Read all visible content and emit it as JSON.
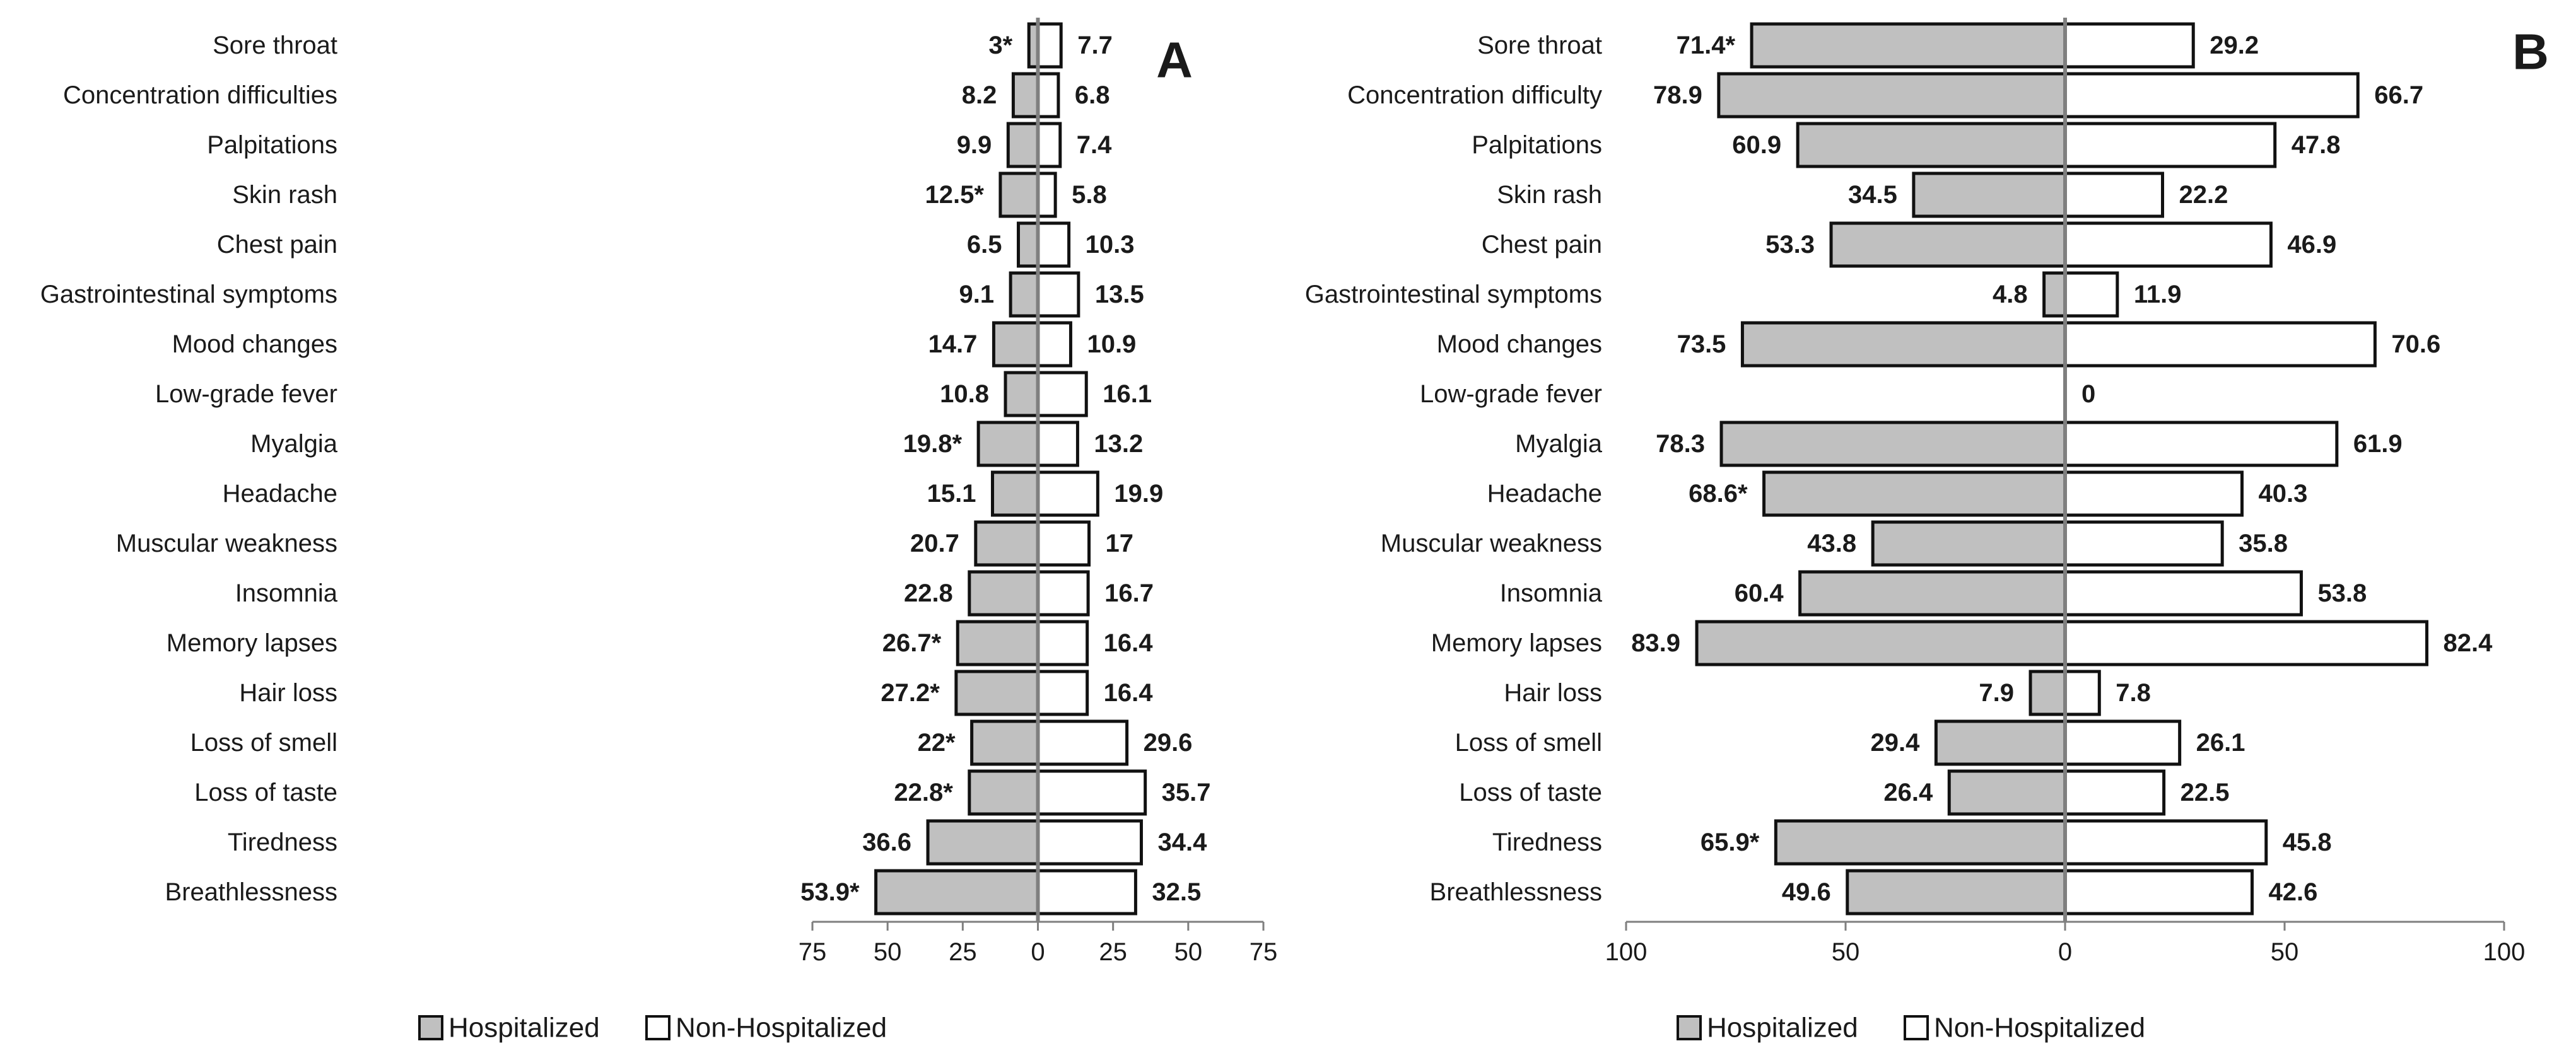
{
  "legend": {
    "hospitalized": "Hospitalized",
    "non_hospitalized": "Non-Hospitalized"
  },
  "colors": {
    "hospitalized_fill": "#c0c0c0",
    "non_hospitalized_fill": "#ffffff",
    "bar_stroke": "#111111",
    "axis": "#7f7f7f",
    "text": "#1a1a1a"
  },
  "chart_data": [
    {
      "type": "bar",
      "orientation": "horizontal-diverging",
      "panel_label": "A",
      "categories": [
        "Sore throat",
        "Concentration difficulties",
        "Palpitations",
        "Skin rash",
        "Chest pain",
        "Gastrointestinal symptoms",
        "Mood changes",
        "Low-grade fever",
        "Myalgia",
        "Headache",
        "Muscular weakness",
        "Insomnia",
        "Memory lapses",
        "Hair loss",
        "Loss of smell",
        "Loss of taste",
        "Tiredness",
        "Breathlessness"
      ],
      "series": [
        {
          "name": "Hospitalized",
          "side": "left",
          "values": [
            3,
            8.2,
            9.9,
            12.5,
            6.5,
            9.1,
            14.7,
            10.8,
            19.8,
            15.1,
            20.7,
            22.8,
            26.7,
            27.2,
            22,
            22.8,
            36.6,
            53.9
          ],
          "labels": [
            "3*",
            "8.2",
            "9.9",
            "12.5*",
            "6.5",
            "9.1",
            "14.7",
            "10.8",
            "19.8*",
            "15.1",
            "20.7",
            "22.8",
            "26.7*",
            "27.2*",
            "22*",
            "22.8*",
            "36.6",
            "53.9*"
          ]
        },
        {
          "name": "Non-Hospitalized",
          "side": "right",
          "values": [
            7.7,
            6.8,
            7.4,
            5.8,
            10.3,
            13.5,
            10.9,
            16.1,
            13.2,
            19.9,
            17,
            16.7,
            16.4,
            16.4,
            29.6,
            35.7,
            34.4,
            32.5
          ],
          "labels": [
            "7.7",
            "6.8",
            "7.4",
            "5.8",
            "10.3",
            "13.5",
            "10.9",
            "16.1",
            "13.2",
            "19.9",
            "17",
            "16.7",
            "16.4",
            "16.4",
            "29.6",
            "35.7",
            "34.4",
            "32.5"
          ]
        }
      ],
      "xlim": [
        -75,
        75
      ],
      "ticks": [
        -75,
        -50,
        -25,
        0,
        25,
        50,
        75
      ],
      "tick_labels": [
        "75",
        "50",
        "25",
        "0",
        "25",
        "50",
        "75"
      ]
    },
    {
      "type": "bar",
      "orientation": "horizontal-diverging",
      "panel_label": "B",
      "categories": [
        "Sore throat",
        "Concentration difficulty",
        "Palpitations",
        "Skin rash",
        "Chest pain",
        "Gastrointestinal symptoms",
        "Mood changes",
        "Low-grade fever",
        "Myalgia",
        "Headache",
        "Muscular weakness",
        "Insomnia",
        "Memory lapses",
        "Hair loss",
        "Loss of smell",
        "Loss of taste",
        "Tiredness",
        "Breathlessness"
      ],
      "series": [
        {
          "name": "Hospitalized",
          "side": "left",
          "values": [
            71.4,
            78.9,
            60.9,
            34.5,
            53.3,
            4.8,
            73.5,
            null,
            78.3,
            68.6,
            43.8,
            60.4,
            83.9,
            7.9,
            29.4,
            26.4,
            65.9,
            49.6
          ],
          "labels": [
            "71.4*",
            "78.9",
            "60.9",
            "34.5",
            "53.3",
            "4.8",
            "73.5",
            "",
            "78.3",
            "68.6*",
            "43.8",
            "60.4",
            "83.9",
            "7.9",
            "29.4",
            "26.4",
            "65.9*",
            "49.6"
          ]
        },
        {
          "name": "Non-Hospitalized",
          "side": "right",
          "values": [
            29.2,
            66.7,
            47.8,
            22.2,
            46.9,
            11.9,
            70.6,
            0,
            61.9,
            40.3,
            35.8,
            53.8,
            82.4,
            7.8,
            26.1,
            22.5,
            45.8,
            42.6
          ],
          "labels": [
            "29.2",
            "66.7",
            "47.8",
            "22.2",
            "46.9",
            "11.9",
            "70.6",
            "0",
            "61.9",
            "40.3",
            "35.8",
            "53.8",
            "82.4",
            "7.8",
            "26.1",
            "22.5",
            "45.8",
            "42.6"
          ]
        }
      ],
      "xlim": [
        -100,
        100
      ],
      "ticks": [
        -100,
        -50,
        0,
        50,
        100
      ],
      "tick_labels": [
        "100",
        "50",
        "0",
        "50",
        "100"
      ]
    }
  ]
}
